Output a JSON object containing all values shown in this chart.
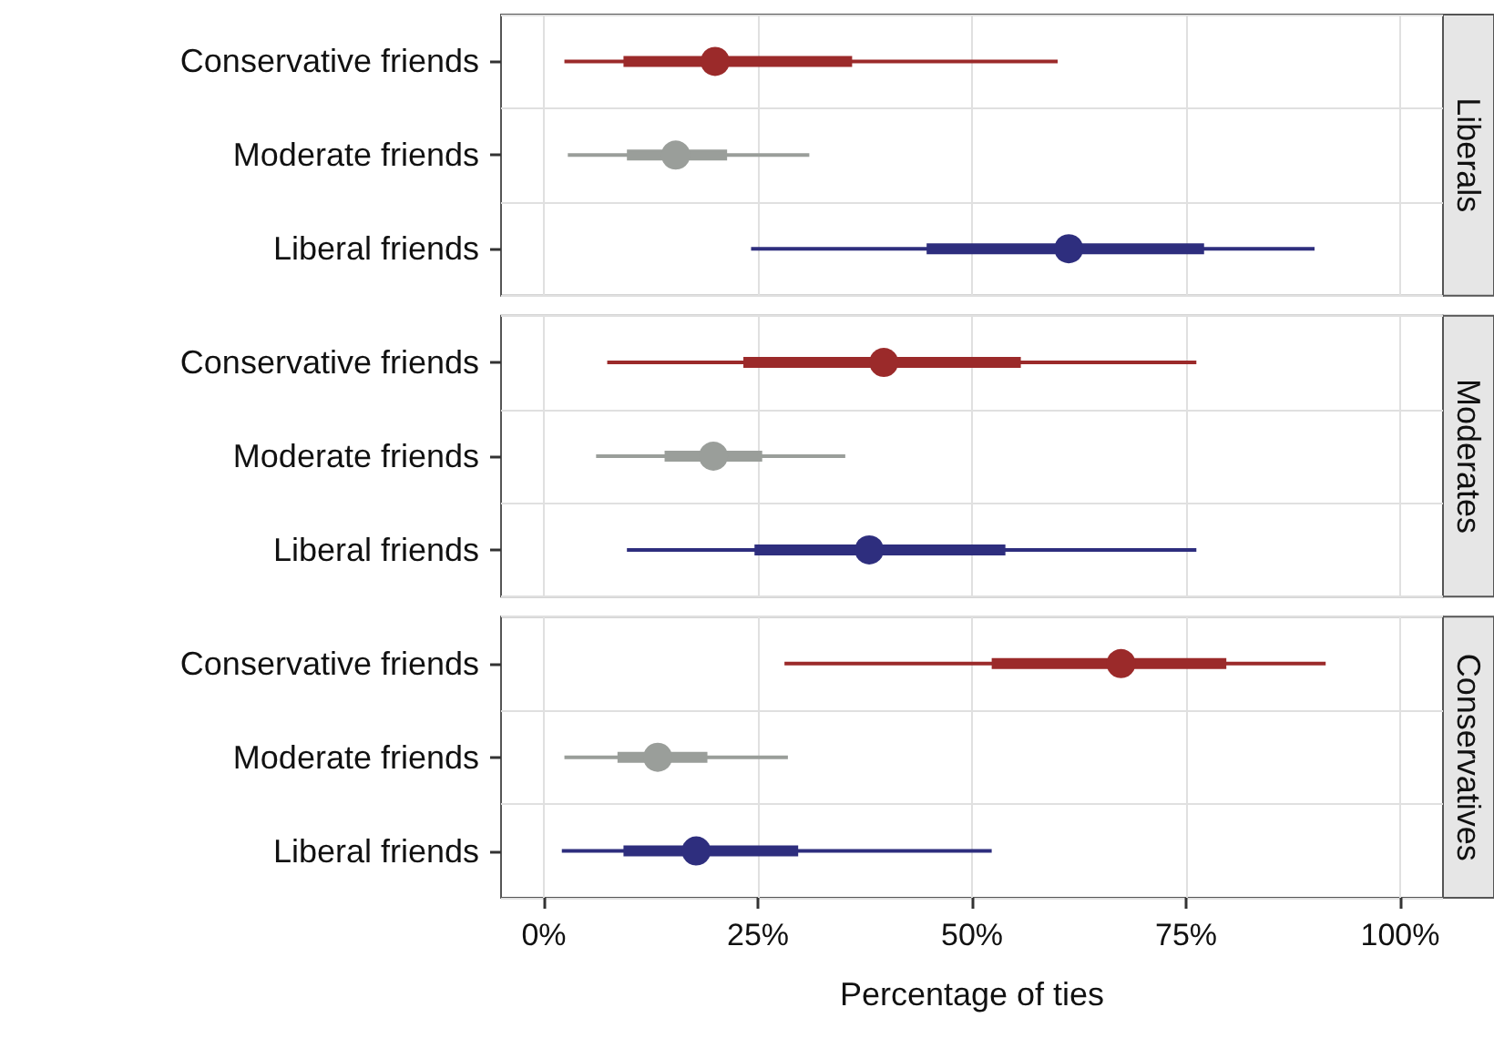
{
  "chart_data": [
    {
      "type": "box",
      "orientation": "horizontal",
      "title": "Liberals",
      "categories": [
        "Conservative friends",
        "Moderate friends",
        "Liberal friends"
      ],
      "colors": [
        "#9b2a2a",
        "#9a9e9a",
        "#2e2e7e"
      ],
      "boxes": [
        {
          "low": 2.4,
          "q1": 9.3,
          "median": 20,
          "q3": 36,
          "high": 60
        },
        {
          "low": 2.8,
          "q1": 9.7,
          "median": 15.4,
          "q3": 21.4,
          "high": 31
        },
        {
          "low": 24.2,
          "q1": 44.7,
          "median": 61.3,
          "q3": 77.1,
          "high": 90
        }
      ],
      "xlim": [
        -5,
        105
      ],
      "xticks": [
        0,
        25,
        50,
        75,
        100
      ],
      "grid": true,
      "tick_labels": "y"
    },
    {
      "type": "box",
      "orientation": "horizontal",
      "title": "Moderates",
      "categories": [
        "Conservative friends",
        "Moderate friends",
        "Liberal friends"
      ],
      "colors": [
        "#9b2a2a",
        "#9a9e9a",
        "#2e2e7e"
      ],
      "boxes": [
        {
          "low": 7.4,
          "q1": 23.3,
          "median": 39.7,
          "q3": 55.7,
          "high": 76.2
        },
        {
          "low": 6.1,
          "q1": 14.1,
          "median": 19.8,
          "q3": 25.5,
          "high": 35.2
        },
        {
          "low": 9.7,
          "q1": 24.6,
          "median": 38,
          "q3": 53.9,
          "high": 76.2
        }
      ],
      "xlim": [
        -5,
        105
      ],
      "xticks": [
        0,
        25,
        50,
        75,
        100
      ],
      "grid": true,
      "tick_labels": "y"
    },
    {
      "type": "box",
      "orientation": "horizontal",
      "title": "Conservatives",
      "xlabel": "Percentage of ties",
      "categories": [
        "Conservative friends",
        "Moderate friends",
        "Liberal friends"
      ],
      "colors": [
        "#9b2a2a",
        "#9a9e9a",
        "#2e2e7e"
      ],
      "boxes": [
        {
          "low": 28.1,
          "q1": 52.3,
          "median": 67.4,
          "q3": 79.7,
          "high": 91.3
        },
        {
          "low": 2.4,
          "q1": 8.6,
          "median": 13.3,
          "q3": 19.1,
          "high": 28.5
        },
        {
          "low": 2.1,
          "q1": 9.3,
          "median": 17.8,
          "q3": 29.7,
          "high": 52.3
        }
      ],
      "xlim": [
        -5,
        105
      ],
      "xticks": [
        {
          "value": 0,
          "label": "0%"
        },
        {
          "value": 25,
          "label": "25%"
        },
        {
          "value": 50,
          "label": "50%"
        },
        {
          "value": 75,
          "label": "75%"
        },
        {
          "value": 100,
          "label": "100%"
        }
      ],
      "grid": true
    }
  ]
}
